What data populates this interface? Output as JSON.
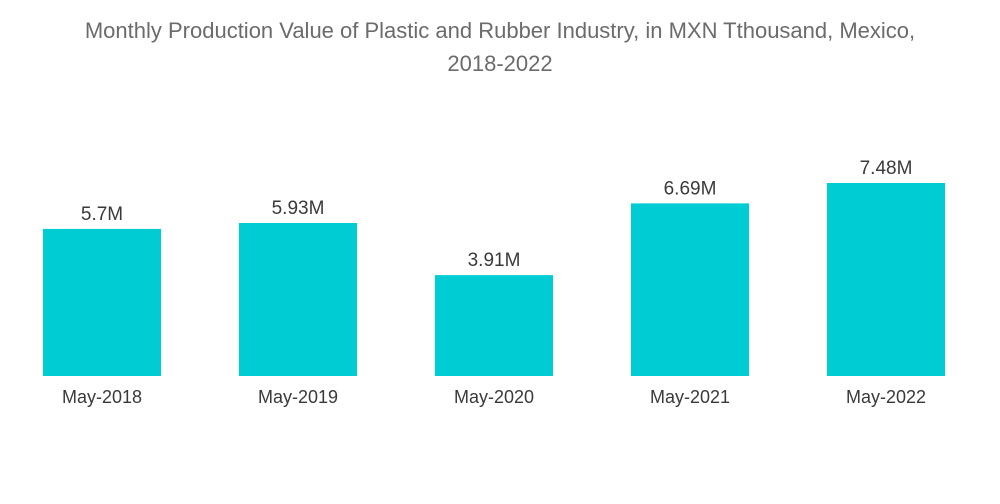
{
  "chart_data": {
    "type": "bar",
    "title_line1": "Monthly Production Value of Plastic and Rubber Industry, in MXN Tthousand, Mexico,",
    "title_line2": "2018-2022",
    "categories": [
      "May-2018",
      "May-2019",
      "May-2020",
      "May-2021",
      "May-2022"
    ],
    "values": [
      5.7,
      5.93,
      3.91,
      6.69,
      7.48
    ],
    "value_labels": [
      "5.7M",
      "5.93M",
      "3.91M",
      "6.69M",
      "7.48M"
    ],
    "xlabel": "",
    "ylabel": "",
    "ylim": [
      0,
      7.48
    ],
    "grid": false,
    "legend": "none",
    "bar_color": "#00cdd3"
  }
}
